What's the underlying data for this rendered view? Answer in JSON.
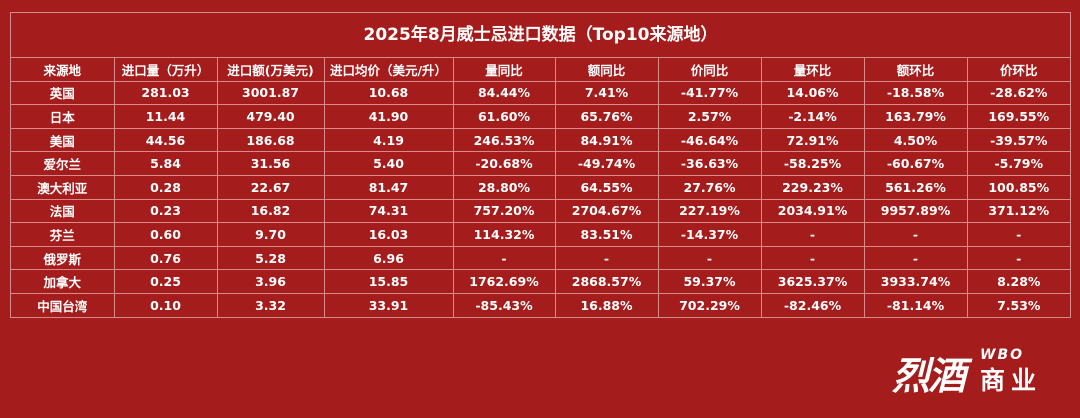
{
  "title": "2025年8月威士忌进口数据（Top10来源地）",
  "columns": [
    "来源地",
    "进口量（万升）",
    "进口额(万美元)",
    "进口均价（美元/升）",
    "量同比",
    "额同比",
    "价同比",
    "量环比",
    "额环比",
    "价环比"
  ],
  "rows": [
    [
      "英国",
      "281.03",
      "3001.87",
      "10.68",
      "84.44%",
      "7.41%",
      "-41.77%",
      "14.06%",
      "-18.58%",
      "-28.62%"
    ],
    [
      "日本",
      "11.44",
      "479.40",
      "41.90",
      "61.60%",
      "65.76%",
      "2.57%",
      "-2.14%",
      "163.79%",
      "169.55%"
    ],
    [
      "美国",
      "44.56",
      "186.68",
      "4.19",
      "246.53%",
      "84.91%",
      "-46.64%",
      "72.91%",
      "4.50%",
      "-39.57%"
    ],
    [
      "爱尔兰",
      "5.84",
      "31.56",
      "5.40",
      "-20.68%",
      "-49.74%",
      "-36.63%",
      "-58.25%",
      "-60.67%",
      "-5.79%"
    ],
    [
      "澳大利亚",
      "0.28",
      "22.67",
      "81.47",
      "28.80%",
      "64.55%",
      "27.76%",
      "229.23%",
      "561.26%",
      "100.85%"
    ],
    [
      "法国",
      "0.23",
      "16.82",
      "74.31",
      "757.20%",
      "2704.67%",
      "227.19%",
      "2034.91%",
      "9957.89%",
      "371.12%"
    ],
    [
      "芬兰",
      "0.60",
      "9.70",
      "16.03",
      "114.32%",
      "83.51%",
      "-14.37%",
      "-",
      "-",
      "-"
    ],
    [
      "俄罗斯",
      "0.76",
      "5.28",
      "6.96",
      "-",
      "-",
      "-",
      "-",
      "-",
      "-"
    ],
    [
      "加拿大",
      "0.25",
      "3.96",
      "15.85",
      "1762.69%",
      "2868.57%",
      "59.37%",
      "3625.37%",
      "3933.74%",
      "8.28%"
    ],
    [
      "中国台湾",
      "0.10",
      "3.32",
      "33.91",
      "-85.43%",
      "16.88%",
      "702.29%",
      "-82.46%",
      "-81.14%",
      "7.53%"
    ]
  ],
  "logo": {
    "main": "烈酒",
    "wbo": "WBO",
    "sub": "商业"
  },
  "colors": {
    "background": "#a41c1c",
    "grid": "#d98a8a",
    "text": "#ffffff"
  }
}
